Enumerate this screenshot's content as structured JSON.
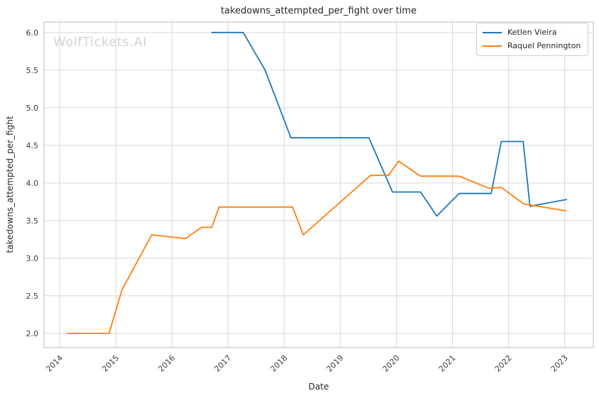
{
  "figure": {
    "watermark": "WolfTickets.AI",
    "watermark_color": "#d4d4d4",
    "background": "#ffffff"
  },
  "chart_data": {
    "type": "line",
    "title": "takedowns_attempted_per_fight over time",
    "xlabel": "Date",
    "ylabel": "takedowns_attempted_per_fight",
    "grid": true,
    "legend_position": "upper right",
    "xlim": [
      2013.72,
      2023.51
    ],
    "ylim": [
      1.81,
      6.14
    ],
    "colors": {
      "grid": "#d7d7d7",
      "border": "#cccccc",
      "text": "#262626",
      "tick_text": "#3c3c3c"
    },
    "x_ticks": [
      {
        "value": 2014,
        "label": "2014"
      },
      {
        "value": 2015,
        "label": "2015"
      },
      {
        "value": 2016,
        "label": "2016"
      },
      {
        "value": 2017,
        "label": "2017"
      },
      {
        "value": 2018,
        "label": "2018"
      },
      {
        "value": 2019,
        "label": "2019"
      },
      {
        "value": 2020,
        "label": "2020"
      },
      {
        "value": 2021,
        "label": "2021"
      },
      {
        "value": 2022,
        "label": "2022"
      },
      {
        "value": 2023,
        "label": "2023"
      }
    ],
    "y_ticks": [
      {
        "value": 2.0,
        "label": "2.0"
      },
      {
        "value": 2.5,
        "label": "2.5"
      },
      {
        "value": 3.0,
        "label": "3.0"
      },
      {
        "value": 3.5,
        "label": "3.5"
      },
      {
        "value": 4.0,
        "label": "4.0"
      },
      {
        "value": 4.5,
        "label": "4.5"
      },
      {
        "value": 5.0,
        "label": "5.0"
      },
      {
        "value": 5.5,
        "label": "5.5"
      },
      {
        "value": 6.0,
        "label": "6.0"
      }
    ],
    "series": [
      {
        "name": "Ketlen Vieira",
        "color": "#1f77b4",
        "points": [
          [
            2016.71,
            6.0
          ],
          [
            2017.27,
            6.0
          ],
          [
            2017.66,
            5.5
          ],
          [
            2018.12,
            4.6
          ],
          [
            2019.51,
            4.6
          ],
          [
            2019.93,
            3.88
          ],
          [
            2020.43,
            3.88
          ],
          [
            2020.72,
            3.56
          ],
          [
            2021.12,
            3.86
          ],
          [
            2021.69,
            3.86
          ],
          [
            2021.87,
            4.55
          ],
          [
            2022.26,
            4.55
          ],
          [
            2022.38,
            3.69
          ],
          [
            2023.03,
            3.78
          ]
        ]
      },
      {
        "name": "Raquel Pennington",
        "color": "#ff7f0e",
        "points": [
          [
            2014.14,
            2.0
          ],
          [
            2014.88,
            2.0
          ],
          [
            2015.11,
            2.58
          ],
          [
            2015.64,
            3.31
          ],
          [
            2016.24,
            3.26
          ],
          [
            2016.53,
            3.41
          ],
          [
            2016.71,
            3.41
          ],
          [
            2016.84,
            3.68
          ],
          [
            2018.15,
            3.68
          ],
          [
            2018.34,
            3.31
          ],
          [
            2019.54,
            4.1
          ],
          [
            2019.86,
            4.1
          ],
          [
            2020.04,
            4.29
          ],
          [
            2020.43,
            4.09
          ],
          [
            2021.12,
            4.09
          ],
          [
            2021.65,
            3.93
          ],
          [
            2021.87,
            3.94
          ],
          [
            2022.27,
            3.72
          ],
          [
            2023.02,
            3.63
          ]
        ]
      }
    ]
  }
}
